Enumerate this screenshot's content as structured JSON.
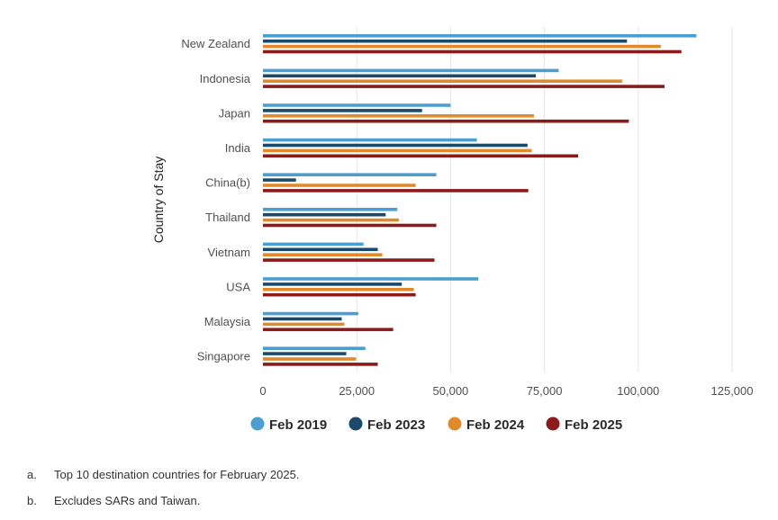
{
  "chart_data": {
    "type": "bar",
    "orientation": "horizontal",
    "title": "",
    "xlabel": "",
    "ylabel": "Country of Stay",
    "xlim": [
      0,
      125000
    ],
    "xticks": [
      0,
      25000,
      50000,
      75000,
      100000,
      125000
    ],
    "xtick_labels": [
      "0",
      "25,000",
      "50,000",
      "75,000",
      "100,000",
      "125,000"
    ],
    "grid": "vertical",
    "legend_position": "bottom",
    "categories": [
      "New Zealand",
      "Indonesia",
      "Japan",
      "India",
      "China(b)",
      "Thailand",
      "Vietnam",
      "USA",
      "Malaysia",
      "Singapore"
    ],
    "series": [
      {
        "name": "Feb 2019",
        "color": "#4a9fd0",
        "values": [
          115500,
          78800,
          50000,
          57000,
          46200,
          35800,
          26800,
          57400,
          25400,
          27300
        ]
      },
      {
        "name": "Feb 2023",
        "color": "#1a4a6b",
        "values": [
          97000,
          72700,
          42400,
          70500,
          8800,
          32700,
          30600,
          37000,
          21000,
          22200
        ]
      },
      {
        "name": "Feb 2024",
        "color": "#e08a2b",
        "values": [
          106000,
          95700,
          72200,
          71600,
          40700,
          36200,
          31800,
          40200,
          21700,
          24800
        ]
      },
      {
        "name": "Feb 2025",
        "color": "#8b1a1a",
        "values": [
          111500,
          107000,
          97500,
          84000,
          70700,
          46200,
          45700,
          40700,
          34700,
          30600
        ]
      }
    ]
  },
  "notes": [
    {
      "key": "a.",
      "text": "Top 10 destination countries for February 2025."
    },
    {
      "key": "b.",
      "text": "Excludes SARs and Taiwan."
    }
  ]
}
